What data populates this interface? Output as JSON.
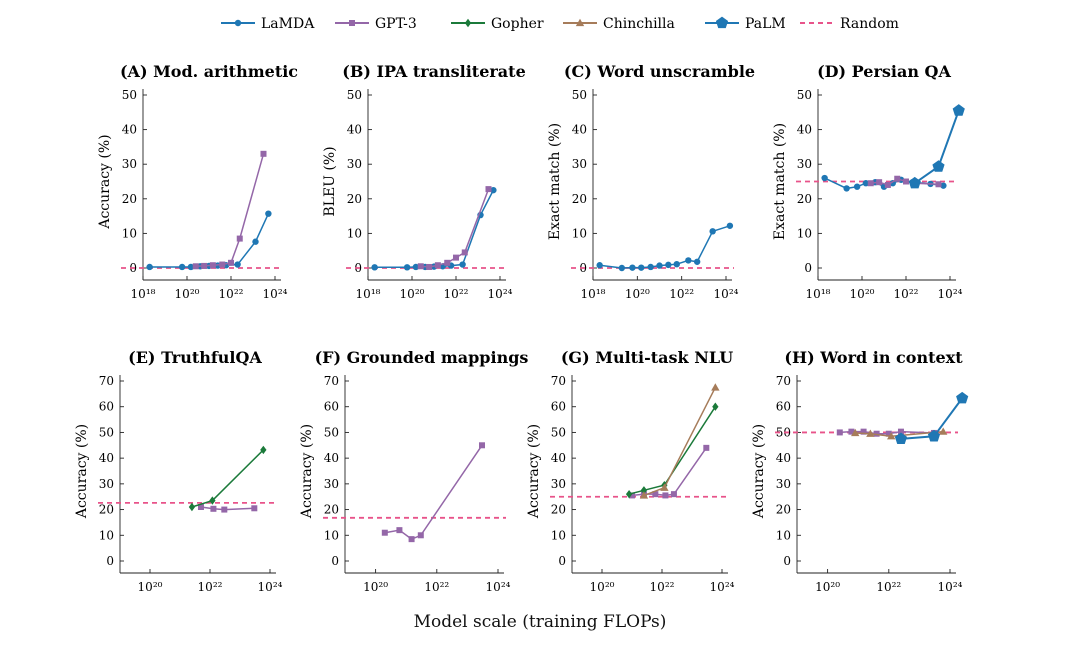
{
  "figure": {
    "xlabel": "Model scale (training FLOPs)"
  },
  "legend": [
    {
      "name": "LaMDA",
      "color": "#1f77b4",
      "marker": "circle"
    },
    {
      "name": "GPT-3",
      "color": "#9467a8",
      "marker": "square"
    },
    {
      "name": "Gopher",
      "color": "#1b7a3a",
      "marker": "diamond"
    },
    {
      "name": "Chinchilla",
      "color": "#a67c5a",
      "marker": "triangle"
    },
    {
      "name": "PaLM",
      "color": "#1f77b4",
      "marker": "pentagon"
    },
    {
      "name": "Random",
      "color": "#e8538a",
      "marker": "dashed"
    }
  ],
  "chart_data": [
    {
      "type": "line",
      "title": "(A) Mod. arithmetic",
      "xlabel": "",
      "ylabel": "Accuracy (%)",
      "xscale": "log",
      "xlim": [
        1e+18,
        1e+24
      ],
      "ylim": [
        0,
        50
      ],
      "xticks": [
        18,
        20,
        22,
        24
      ],
      "yticks": [
        0,
        10,
        20,
        30,
        40,
        50
      ],
      "random": 0,
      "series": [
        {
          "name": "LaMDA",
          "x": [
            2e+18,
            6e+19,
            1.5e+20,
            4e+20,
            1e+21,
            2.5e+21,
            6e+21,
            2e+22,
            1.3e+23,
            5e+23
          ],
          "y": [
            0.3,
            0.3,
            0.3,
            0.5,
            0.6,
            0.7,
            0.8,
            1.0,
            7.6,
            15.7
          ]
        },
        {
          "name": "GPT-3",
          "x": [
            2.5e+20,
            6e+20,
            1.5e+21,
            4e+21,
            1e+22,
            2.5e+22,
            3e+23
          ],
          "y": [
            0.5,
            0.6,
            0.8,
            1.0,
            1.5,
            8.5,
            33
          ]
        }
      ]
    },
    {
      "type": "line",
      "title": "(B) IPA transliterate",
      "xlabel": "",
      "ylabel": "BLEU (%)",
      "xscale": "log",
      "xlim": [
        1e+18,
        1e+24
      ],
      "ylim": [
        0,
        50
      ],
      "xticks": [
        18,
        20,
        22,
        24
      ],
      "yticks": [
        0,
        10,
        20,
        30,
        40,
        50
      ],
      "random": 0,
      "series": [
        {
          "name": "LaMDA",
          "x": [
            2e+18,
            6e+19,
            1.5e+20,
            4e+20,
            1e+21,
            2.5e+21,
            6e+21,
            2e+22,
            1.3e+23,
            5e+23
          ],
          "y": [
            0.2,
            0.2,
            0.3,
            0.3,
            0.4,
            0.5,
            0.7,
            1.0,
            15.3,
            22.5
          ]
        },
        {
          "name": "GPT-3",
          "x": [
            2.5e+20,
            6e+20,
            1.5e+21,
            4e+21,
            1e+22,
            2.5e+22,
            3e+23
          ],
          "y": [
            0.5,
            0.3,
            0.8,
            1.5,
            3.0,
            4.5,
            22.8
          ]
        }
      ]
    },
    {
      "type": "line",
      "title": "(C) Word unscramble",
      "xlabel": "",
      "ylabel": "Exact match (%)",
      "xscale": "log",
      "xlim": [
        1e+18,
        1e+24
      ],
      "ylim": [
        0,
        50
      ],
      "xticks": [
        18,
        20,
        22,
        24
      ],
      "yticks": [
        0,
        10,
        20,
        30,
        40,
        50
      ],
      "random": 0,
      "series": [
        {
          "name": "LaMDA",
          "x": [
            2e+18,
            2e+19,
            6e+19,
            1.5e+20,
            4e+20,
            1e+21,
            2.5e+21,
            6e+21,
            2e+22,
            5e+22,
            2.5e+23,
            1.5e+24
          ],
          "y": [
            0.8,
            0.0,
            0.1,
            0.1,
            0.3,
            0.7,
            0.9,
            1.1,
            2.2,
            1.8,
            10.6,
            12.2
          ]
        }
      ]
    },
    {
      "type": "line",
      "title": "(D) Persian QA",
      "xlabel": "",
      "ylabel": "Exact match (%)",
      "xscale": "log",
      "xlim": [
        1e+18,
        1e+24
      ],
      "ylim": [
        0,
        50
      ],
      "xticks": [
        18,
        20,
        22,
        24
      ],
      "yticks": [
        0,
        10,
        20,
        30,
        40,
        50
      ],
      "random": 25,
      "series": [
        {
          "name": "LaMDA",
          "x": [
            2e+18,
            2e+19,
            6e+19,
            1.5e+20,
            4e+20,
            1e+21,
            2.5e+21,
            6e+21,
            2e+22,
            1.3e+23,
            5e+23
          ],
          "y": [
            26.0,
            23.0,
            23.5,
            24.5,
            24.8,
            23.5,
            24.5,
            25.5,
            24.8,
            24.3,
            23.8
          ]
        },
        {
          "name": "GPT-3",
          "x": [
            2.5e+20,
            6e+20,
            1.5e+21,
            4e+21,
            1e+22,
            2.5e+22,
            3e+23
          ],
          "y": [
            24.5,
            24.8,
            24.0,
            25.8,
            25.0,
            24.5,
            24.2
          ]
        },
        {
          "name": "PaLM",
          "x": [
            2.5e+22,
            3e+23,
            2.5e+24
          ],
          "y": [
            24.5,
            29.3,
            45.5
          ]
        }
      ]
    },
    {
      "type": "line",
      "title": "(E) TruthfulQA",
      "xlabel": "",
      "ylabel": "Accuracy (%)",
      "xscale": "log",
      "xlim": [
        1e+19,
        1e+24
      ],
      "ylim": [
        0,
        70
      ],
      "xticks": [
        20,
        22,
        24
      ],
      "yticks": [
        0,
        10,
        20,
        30,
        40,
        50,
        60,
        70
      ],
      "random": 22.6,
      "series": [
        {
          "name": "GPT-3",
          "x": [
            5e+21,
            1.3e+22,
            3e+22,
            3e+23
          ],
          "y": [
            21.0,
            20.3,
            20.0,
            20.5
          ]
        },
        {
          "name": "Gopher",
          "x": [
            2.5e+21,
            1.2e+22,
            6e+23
          ],
          "y": [
            21.0,
            23.5,
            43.2
          ]
        }
      ]
    },
    {
      "type": "line",
      "title": "(F) Grounded mappings",
      "xlabel": "",
      "ylabel": "Accuracy (%)",
      "xscale": "log",
      "xlim": [
        1e+19,
        1e+24
      ],
      "ylim": [
        0,
        70
      ],
      "xticks": [
        20,
        22,
        24
      ],
      "yticks": [
        0,
        10,
        20,
        30,
        40,
        50,
        60,
        70
      ],
      "random": 16.8,
      "series": [
        {
          "name": "GPT-3",
          "x": [
            2e+20,
            6e+20,
            1.5e+21,
            3e+21,
            3e+23
          ],
          "y": [
            11.0,
            12.0,
            8.5,
            10.0,
            45.0
          ]
        }
      ]
    },
    {
      "type": "line",
      "title": "(G) Multi-task NLU",
      "xlabel": "",
      "ylabel": "Accuracy (%)",
      "xscale": "log",
      "xlim": [
        1e+19,
        1e+24
      ],
      "ylim": [
        0,
        70
      ],
      "xticks": [
        20,
        22,
        24
      ],
      "yticks": [
        0,
        10,
        20,
        30,
        40,
        50,
        60,
        70
      ],
      "random": 25,
      "series": [
        {
          "name": "GPT-3",
          "x": [
            1e+21,
            2.5e+21,
            6e+21,
            1.3e+22,
            2.5e+22,
            3e+23
          ],
          "y": [
            25.5,
            26.0,
            26.0,
            25.5,
            26.0,
            44.0
          ]
        },
        {
          "name": "Gopher",
          "x": [
            8e+20,
            2.5e+21,
            1.2e+22,
            6e+23
          ],
          "y": [
            26.0,
            27.5,
            29.5,
            60.0
          ]
        },
        {
          "name": "Chinchilla",
          "x": [
            2.5e+21,
            1.2e+22,
            6e+23
          ],
          "y": [
            25.5,
            28.5,
            67.5
          ]
        }
      ]
    },
    {
      "type": "line",
      "title": "(H) Word in context",
      "xlabel": "",
      "ylabel": "Accuracy (%)",
      "xscale": "log",
      "xlim": [
        1e+19,
        1e+24
      ],
      "ylim": [
        0,
        70
      ],
      "xticks": [
        20,
        22,
        24
      ],
      "yticks": [
        0,
        10,
        20,
        30,
        40,
        50,
        60,
        70
      ],
      "random": 50,
      "series": [
        {
          "name": "GPT-3",
          "x": [
            2.5e+20,
            6e+20,
            1.5e+21,
            4e+21,
            1e+22,
            2.5e+22,
            3e+23
          ],
          "y": [
            50.0,
            50.3,
            50.3,
            49.5,
            49.5,
            50.3,
            49.8
          ]
        },
        {
          "name": "Chinchilla",
          "x": [
            8e+20,
            2.5e+21,
            1.2e+22,
            6e+23
          ],
          "y": [
            49.8,
            49.5,
            48.5,
            50.3
          ]
        },
        {
          "name": "PaLM",
          "x": [
            2.5e+22,
            3e+23,
            2.5e+24
          ],
          "y": [
            47.5,
            48.5,
            63.3
          ]
        }
      ]
    }
  ]
}
